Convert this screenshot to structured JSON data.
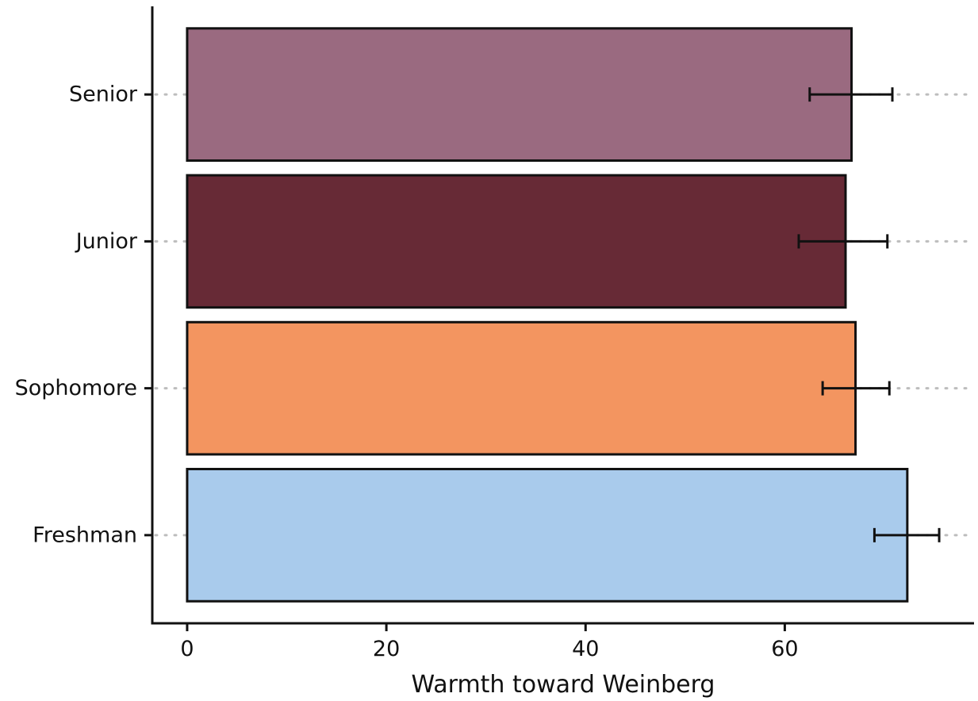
{
  "chart_data": {
    "type": "bar",
    "orientation": "horizontal",
    "categories": [
      "Freshman",
      "Sophomore",
      "Junior",
      "Senior"
    ],
    "values": [
      72.3,
      67.1,
      66.1,
      66.7
    ],
    "error_low": [
      69.0,
      63.8,
      61.4,
      62.5
    ],
    "error_high": [
      75.5,
      70.5,
      70.3,
      70.8
    ],
    "colors": [
      "#a9cbec",
      "#f39560",
      "#672a36",
      "#9a6a80"
    ],
    "xlabel": "Warmth toward Weinberg",
    "ylabel": "",
    "xlim": [
      -3.5,
      79
    ],
    "xticks": [
      "0",
      "20",
      "40",
      "60"
    ],
    "grid": "dotted horizontal guides at category positions",
    "legend": "none"
  }
}
